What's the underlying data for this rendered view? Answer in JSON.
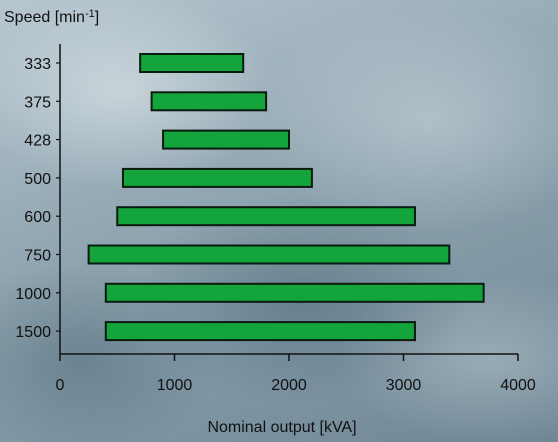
{
  "chart_data": {
    "type": "bar",
    "orientation": "horizontal",
    "bar_style": "range",
    "categories": [
      "333",
      "375",
      "428",
      "500",
      "600",
      "750",
      "1000",
      "1500"
    ],
    "ranges": [
      [
        700,
        1600
      ],
      [
        800,
        1800
      ],
      [
        900,
        2000
      ],
      [
        550,
        2200
      ],
      [
        500,
        3100
      ],
      [
        250,
        3400
      ],
      [
        400,
        3700
      ],
      [
        400,
        3100
      ]
    ],
    "ylabel_main": "Speed [min",
    "ylabel_sup": "-1",
    "ylabel_end": "]",
    "xlabel": "Nominal output [kVA]",
    "xticks": [
      "0",
      "1000",
      "2000",
      "3000",
      "4000"
    ],
    "xlim": [
      0,
      4000
    ],
    "grid": false,
    "bar_color": "#13a43b",
    "bar_edge_color": "#0b1a0f"
  }
}
